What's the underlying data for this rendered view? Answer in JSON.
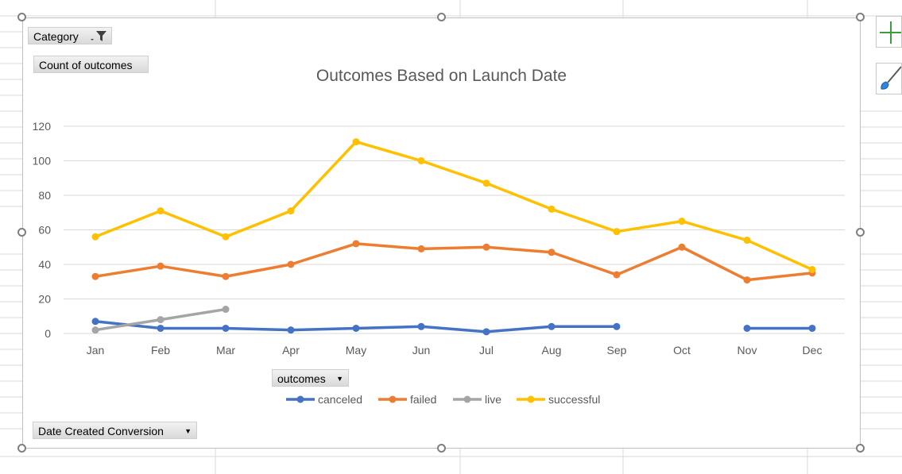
{
  "pivot": {
    "category_label": "Category",
    "count_label": "Count of outcomes",
    "outcomes_label": "outcomes",
    "date_label": "Date Created Conversion"
  },
  "chart_data": {
    "type": "line",
    "title": "Outcomes Based on Launch Date",
    "xlabel": "",
    "ylabel": "",
    "categories": [
      "Jan",
      "Feb",
      "Mar",
      "Apr",
      "May",
      "Jun",
      "Jul",
      "Aug",
      "Sep",
      "Oct",
      "Nov",
      "Dec"
    ],
    "ylim": [
      0,
      120
    ],
    "yticks": [
      0,
      20,
      40,
      60,
      80,
      100,
      120
    ],
    "grid": true,
    "legend_position": "bottom",
    "series": [
      {
        "name": "canceled",
        "color": "#4472c4",
        "values": [
          7,
          3,
          3,
          2,
          3,
          4,
          1,
          4,
          4,
          null,
          3,
          3
        ]
      },
      {
        "name": "failed",
        "color": "#ed7d31",
        "values": [
          33,
          39,
          33,
          40,
          52,
          49,
          50,
          47,
          34,
          50,
          31,
          35
        ]
      },
      {
        "name": "live",
        "color": "#a5a5a5",
        "values": [
          2,
          8,
          14,
          null,
          null,
          null,
          null,
          null,
          null,
          null,
          null,
          null
        ]
      },
      {
        "name": "successful",
        "color": "#ffc000",
        "values": [
          56,
          71,
          56,
          71,
          111,
          100,
          87,
          72,
          59,
          65,
          54,
          37
        ]
      }
    ]
  },
  "side_buttons": [
    "plus-icon",
    "brush-icon"
  ]
}
